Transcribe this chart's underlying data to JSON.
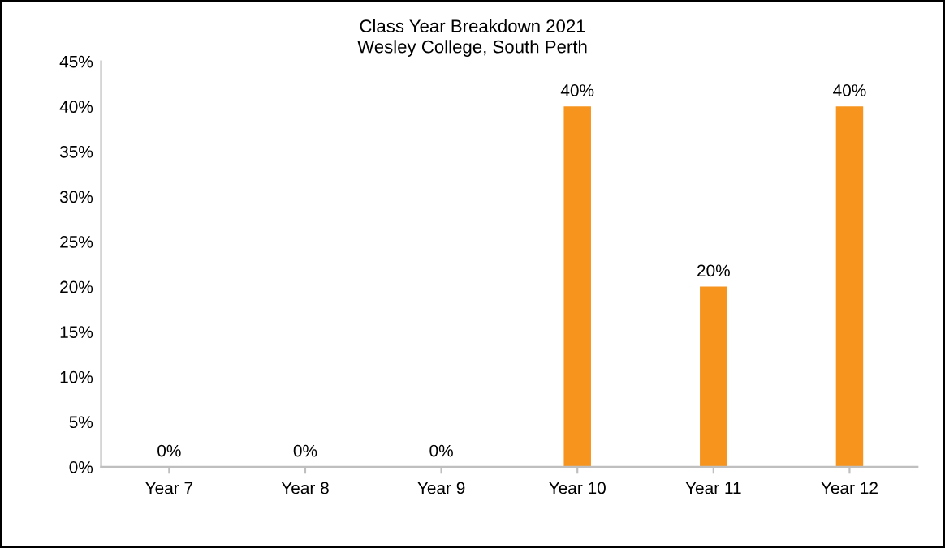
{
  "chart_data": {
    "type": "bar",
    "title": "Class Year Breakdown 2021\nWesley College, South Perth",
    "categories": [
      "Year 7",
      "Year 8",
      "Year 9",
      "Year 10",
      "Year 11",
      "Year 12"
    ],
    "values": [
      0,
      0,
      0,
      40,
      20,
      40
    ],
    "value_labels": [
      "0%",
      "0%",
      "0%",
      "40%",
      "20%",
      "40%"
    ],
    "color": "#f7941d",
    "ylim": [
      0,
      45
    ],
    "yticks": [
      {
        "value": 0,
        "label": "0%"
      },
      {
        "value": 5,
        "label": "5%"
      },
      {
        "value": 10,
        "label": "10%"
      },
      {
        "value": 15,
        "label": "15%"
      },
      {
        "value": 20,
        "label": "20%"
      },
      {
        "value": 25,
        "label": "25%"
      },
      {
        "value": 30,
        "label": "30%"
      },
      {
        "value": 35,
        "label": "35%"
      },
      {
        "value": 40,
        "label": "40%"
      },
      {
        "value": 45,
        "label": "45%"
      }
    ],
    "grid": false,
    "legend": false
  }
}
